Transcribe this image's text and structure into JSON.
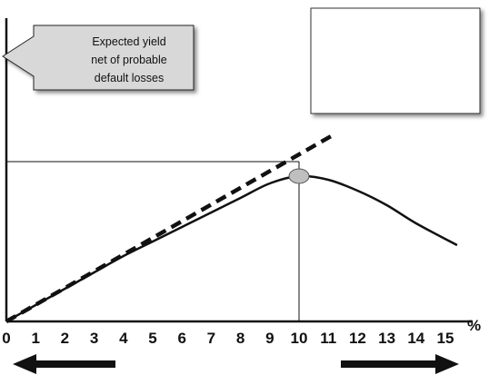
{
  "chart_data": {
    "type": "line",
    "x_unit": "%",
    "x_ticks": [
      0,
      1,
      2,
      3,
      4,
      5,
      6,
      7,
      8,
      9,
      10,
      11,
      12,
      13,
      14,
      15
    ],
    "xlim": [
      0,
      15
    ],
    "series": [
      {
        "style": "solid",
        "x": [
          0,
          1,
          2,
          3,
          4,
          5,
          6,
          7,
          8,
          9,
          10,
          11,
          12,
          13,
          14,
          15.4
        ],
        "y": [
          0,
          9,
          18,
          27,
          36,
          44,
          52,
          60,
          68,
          76,
          80,
          78,
          72,
          64,
          54,
          42
        ]
      },
      {
        "style": "dashed",
        "x": [
          0,
          11.2
        ],
        "y": [
          0,
          103
        ]
      }
    ],
    "reference_lines": {
      "vertical_x": 10,
      "horizontal_y": 88
    },
    "peak_marker": {
      "x": 10,
      "y": 80
    },
    "annotations": [
      {
        "text_lines": [
          "Expected yield",
          "net of probable",
          "default losses"
        ],
        "pointing": "left"
      }
    ],
    "bottom_arrows": [
      "left",
      "right"
    ],
    "empty_box": true
  }
}
